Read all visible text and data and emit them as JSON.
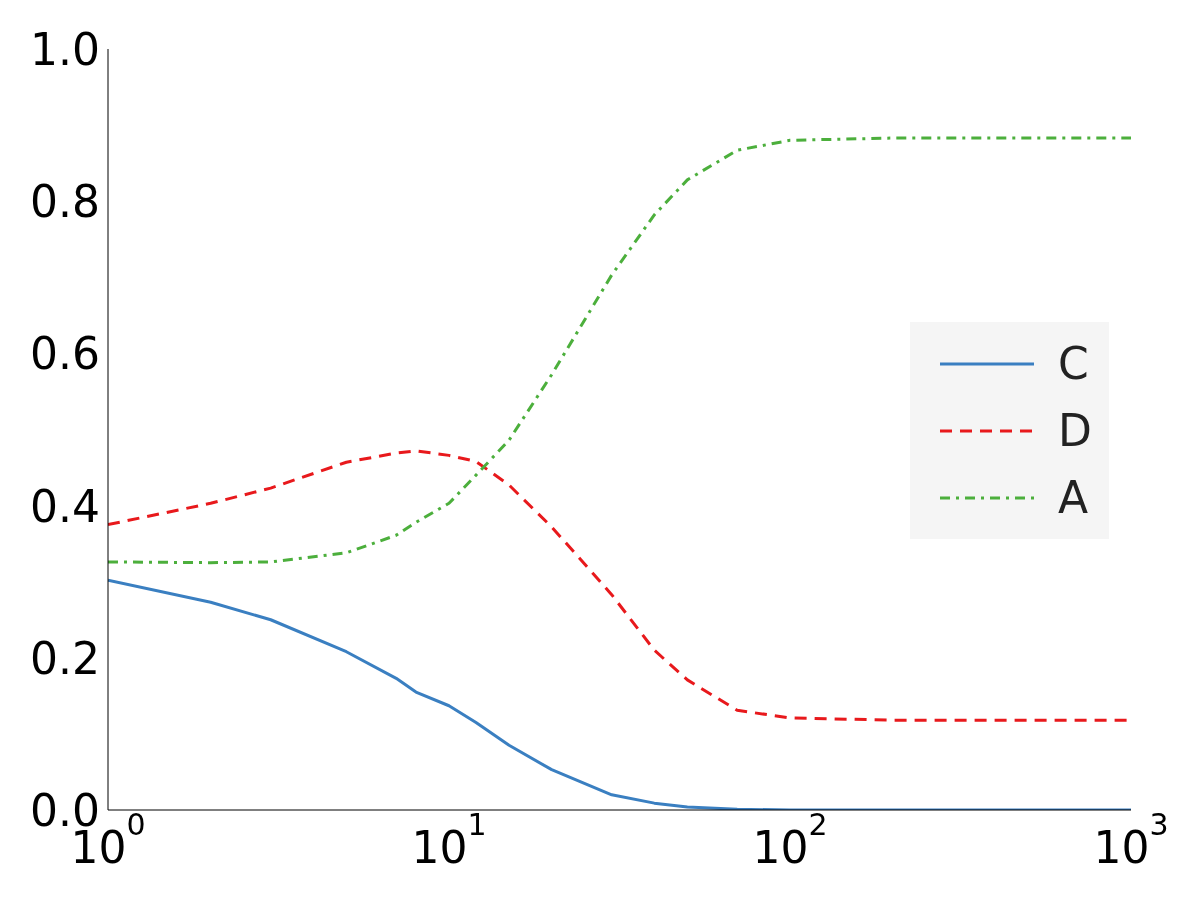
{
  "chart_data": {
    "type": "line",
    "x": [
      1,
      2,
      3,
      5,
      7,
      8,
      10,
      12,
      15,
      20,
      30,
      40,
      50,
      70,
      100,
      200,
      1000
    ],
    "series": [
      {
        "name": "C",
        "color": "#3a7fc1",
        "line_style": "solid",
        "values": [
          0.302,
          0.273,
          0.25,
          0.208,
          0.173,
          0.155,
          0.137,
          0.115,
          0.085,
          0.053,
          0.02,
          0.009,
          0.004,
          0.001,
          0,
          0,
          0
        ]
      },
      {
        "name": "D",
        "color": "#e8191c",
        "line_style": "dashed",
        "values": [
          0.375,
          0.403,
          0.423,
          0.457,
          0.469,
          0.472,
          0.466,
          0.458,
          0.427,
          0.372,
          0.283,
          0.21,
          0.171,
          0.131,
          0.121,
          0.118,
          0.118
        ]
      },
      {
        "name": "A",
        "color": "#4caf3c",
        "line_style": "dashdot",
        "values": [
          0.326,
          0.325,
          0.326,
          0.338,
          0.361,
          0.378,
          0.403,
          0.44,
          0.486,
          0.572,
          0.703,
          0.782,
          0.828,
          0.867,
          0.88,
          0.883,
          0.883
        ]
      }
    ],
    "log": "x",
    "xlim": [
      1,
      1000
    ],
    "xticks": [
      {
        "value": 1,
        "label": "10$^{0}$"
      },
      {
        "value": 10,
        "label": "10$^{1}$"
      },
      {
        "value": 100,
        "label": "10$^{2}$"
      },
      {
        "value": 1000,
        "label": "10$^{3}$"
      }
    ],
    "ylim": [
      0,
      1
    ],
    "yticks": [
      {
        "value": 0,
        "label": "0.0"
      },
      {
        "value": 0.2,
        "label": "0.2"
      },
      {
        "value": 0.4,
        "label": "0.4"
      },
      {
        "value": 0.6,
        "label": "0.6"
      },
      {
        "value": 0.8,
        "label": "0.8"
      },
      {
        "value": 1,
        "label": "1.0"
      }
    ],
    "grid": false,
    "legend": "right",
    "marker": "none"
  }
}
